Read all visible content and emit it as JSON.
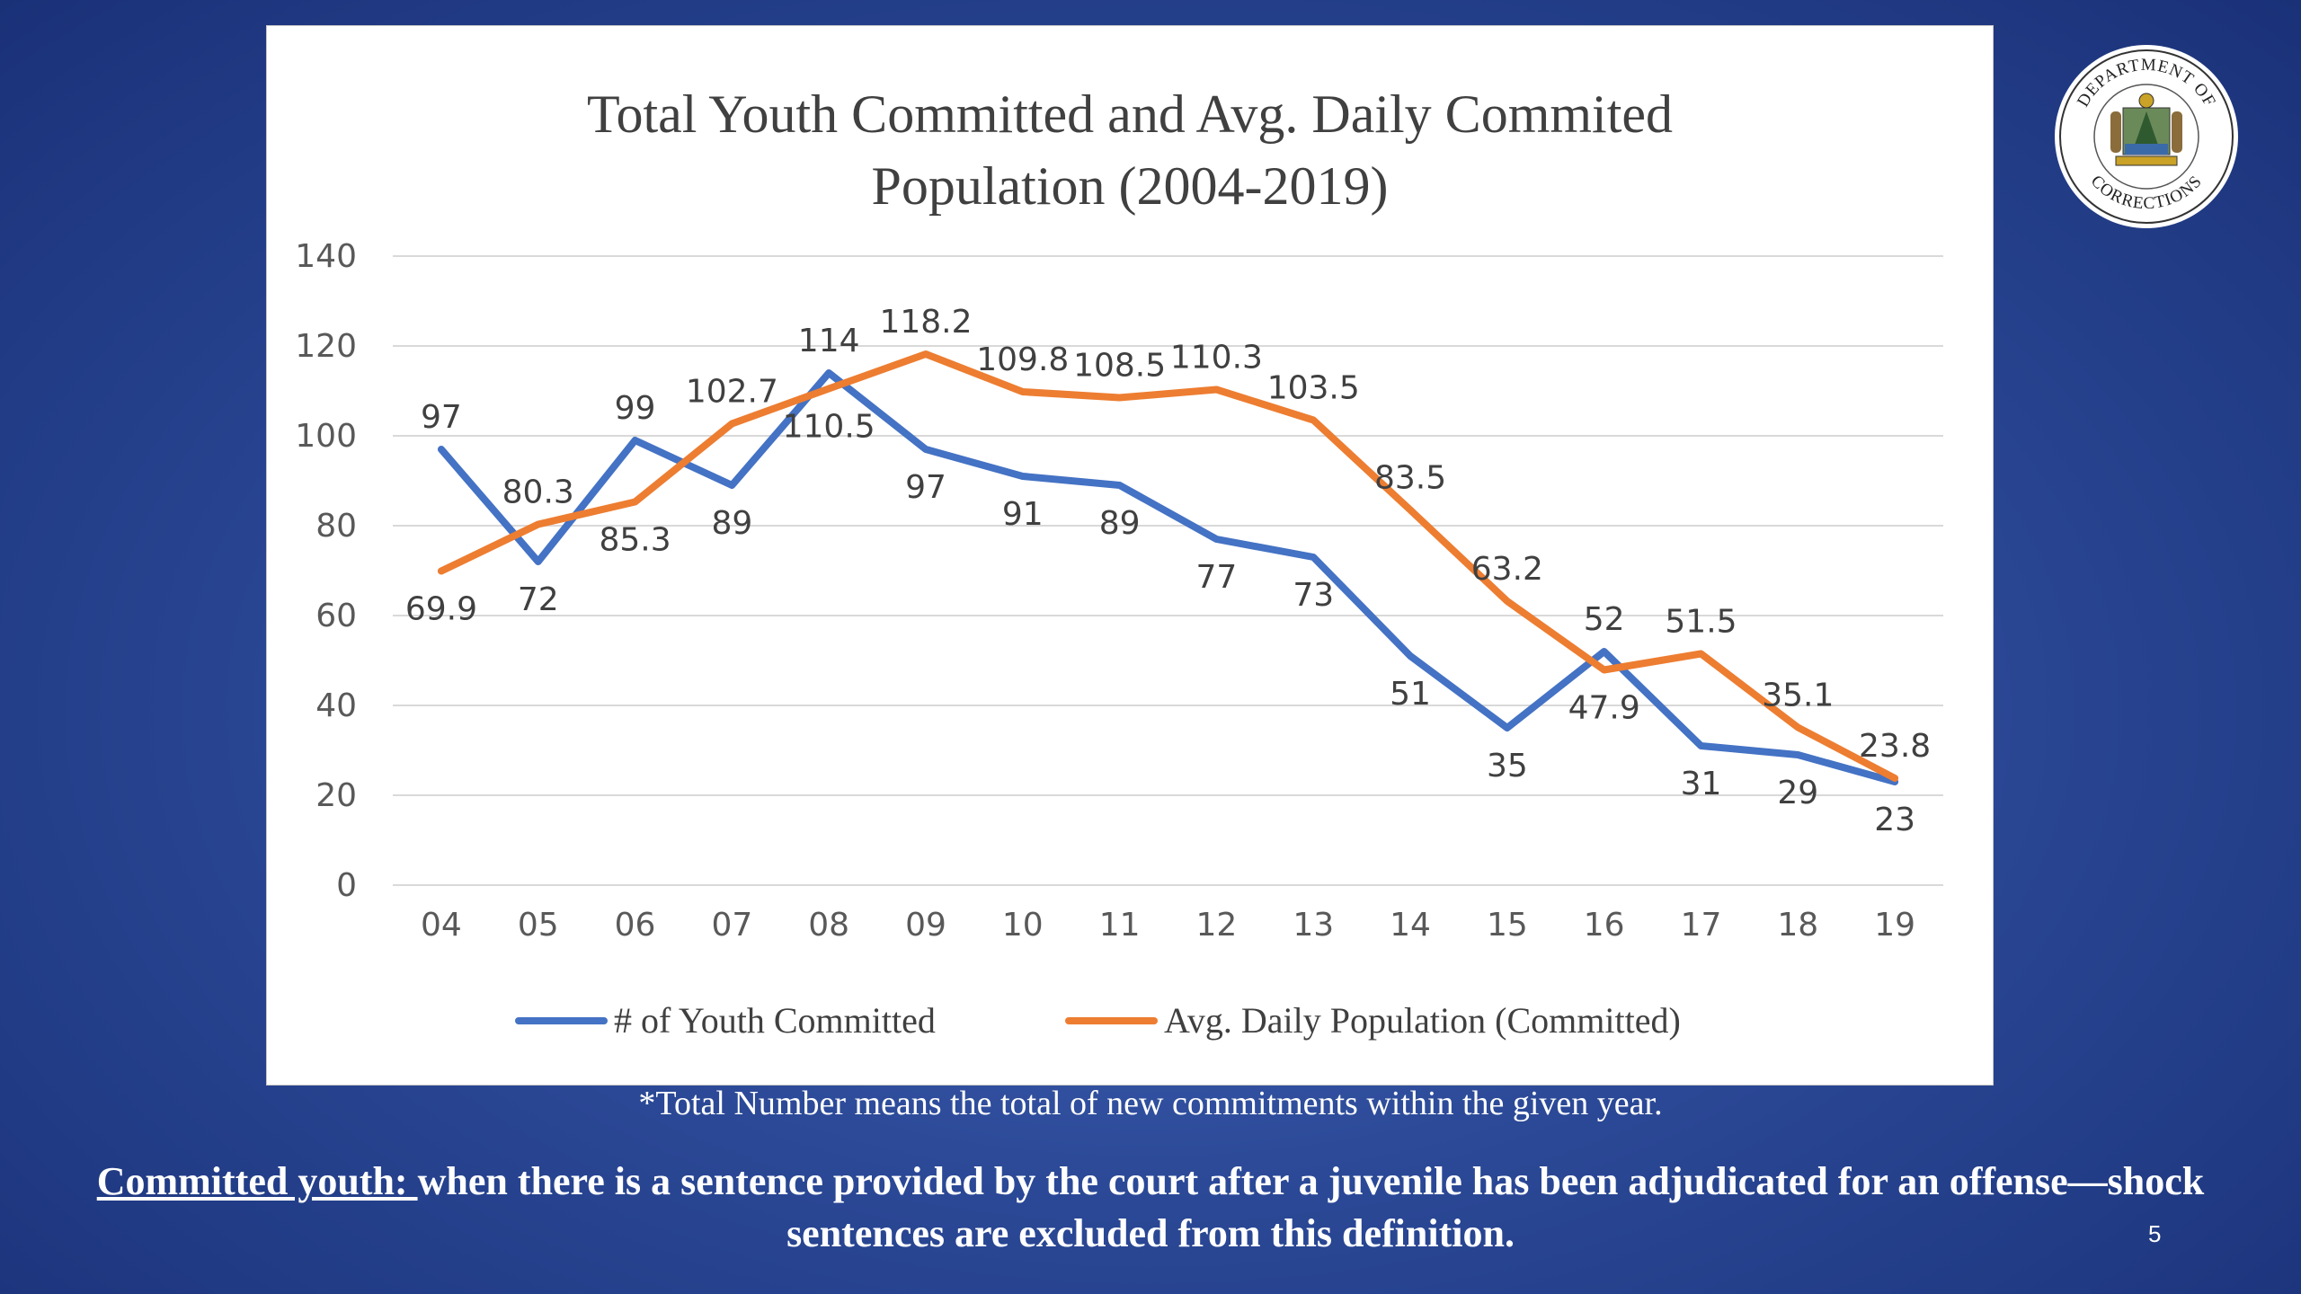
{
  "chart_data": {
    "type": "line",
    "title_line1": "Total Youth Committed and Avg. Daily Commited",
    "title_line2": "Population (2004-2019)",
    "categories": [
      "04",
      "05",
      "06",
      "07",
      "08",
      "09",
      "10",
      "11",
      "12",
      "13",
      "14",
      "15",
      "16",
      "17",
      "18",
      "19"
    ],
    "ylim": [
      0,
      140
    ],
    "yticks": [
      0,
      20,
      40,
      60,
      80,
      100,
      120,
      140
    ],
    "grid": true,
    "legend_position": "bottom",
    "series": [
      {
        "name": "# of Youth Committed",
        "color": "#4472c4",
        "values": [
          97,
          72,
          99,
          89,
          114,
          97,
          91,
          89,
          77,
          73,
          51,
          35,
          52,
          31,
          29,
          23
        ],
        "labels": [
          "97",
          "72",
          "99",
          "89",
          "114",
          "97",
          "91",
          "89",
          "77",
          "73",
          "51",
          "35",
          "52",
          "31",
          "29",
          "23"
        ]
      },
      {
        "name": "Avg. Daily Population (Committed)",
        "color": "#ed7d31",
        "values": [
          69.9,
          80.3,
          85.3,
          102.7,
          110.5,
          118.2,
          109.8,
          108.5,
          110.3,
          103.5,
          83.5,
          63.2,
          47.9,
          51.5,
          35.1,
          23.8
        ],
        "labels": [
          "69.9",
          "80.3",
          "85.3",
          "102.7",
          "110.5",
          "118.2",
          "109.8",
          "108.5",
          "110.3",
          "103.5",
          "83.5",
          "63.2",
          "47.9",
          "51.5",
          "35.1",
          "23.8"
        ]
      }
    ]
  },
  "footnote": "*Total Number means the total of new commitments within the given year.",
  "definition": {
    "term": "Committed youth: ",
    "text": " when there is a sentence provided by the court after a juvenile has been adjudicated for an offense—shock sentences are excluded from this definition."
  },
  "page_number": "5",
  "seal": {
    "icon": "department-of-corrections-seal",
    "text_top": "DEPARTMENT OF",
    "text_bottom": "CORRECTIONS"
  }
}
